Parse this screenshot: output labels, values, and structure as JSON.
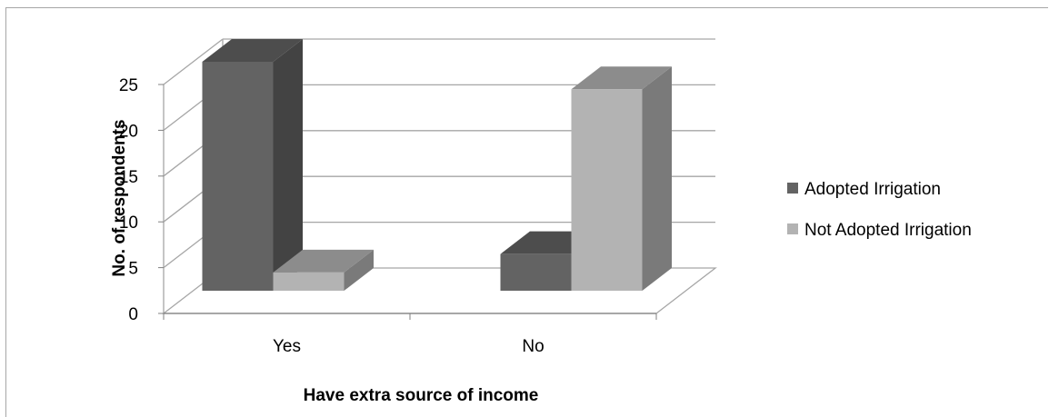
{
  "chart_data": {
    "type": "bar",
    "style": "3d-clustered-column",
    "categories": [
      "Yes",
      "No"
    ],
    "series": [
      {
        "name": "Adopted Irrigation",
        "values": [
          25,
          4
        ],
        "color": "#636363"
      },
      {
        "name": "Not Adopted Irrigation",
        "values": [
          2,
          22
        ],
        "color": "#b3b3b3"
      }
    ],
    "yticks": [
      0,
      5,
      10,
      15,
      20,
      25
    ],
    "ylim": [
      0,
      25
    ],
    "xlabel": "Have extra source of income",
    "ylabel": "No. of respondents",
    "grid": true,
    "legend_position": "right"
  }
}
